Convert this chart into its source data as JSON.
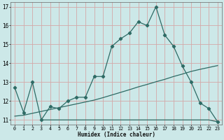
{
  "xlabel": "Humidex (Indice chaleur)",
  "xlim": [
    -0.5,
    23.5
  ],
  "ylim": [
    10.75,
    17.25
  ],
  "yticks": [
    11,
    12,
    13,
    14,
    15,
    16,
    17
  ],
  "xticks": [
    0,
    1,
    2,
    3,
    4,
    5,
    6,
    7,
    8,
    9,
    10,
    11,
    12,
    13,
    14,
    15,
    16,
    17,
    18,
    19,
    20,
    21,
    22,
    23
  ],
  "bg_color": "#cce8e8",
  "grid_color": "#d4a8a8",
  "line_color": "#2e6b65",
  "line1_x": [
    0,
    1,
    2,
    3,
    4,
    5,
    6,
    7,
    8,
    9,
    10,
    11,
    12,
    13,
    14,
    15,
    16,
    17,
    18,
    19,
    20,
    21,
    22,
    23
  ],
  "line1_y": [
    12.7,
    11.4,
    13.0,
    11.0,
    11.7,
    11.6,
    12.0,
    12.2,
    12.2,
    13.3,
    13.3,
    14.9,
    15.3,
    15.6,
    16.2,
    16.0,
    17.0,
    15.5,
    14.9,
    13.85,
    13.0,
    11.9,
    11.6,
    10.9
  ],
  "line2_x": [
    3,
    4,
    5,
    6,
    7,
    8,
    9,
    10,
    11,
    12,
    13,
    14,
    15,
    16,
    17,
    18,
    19,
    20,
    21,
    22,
    23
  ],
  "line2_y": [
    11.0,
    11.0,
    11.0,
    11.0,
    11.0,
    11.0,
    11.0,
    11.0,
    11.0,
    11.0,
    11.0,
    11.0,
    11.0,
    11.0,
    11.0,
    11.0,
    11.0,
    11.0,
    11.0,
    11.0,
    10.9
  ],
  "line3_x": [
    0,
    1,
    2,
    3,
    4,
    5,
    6,
    7,
    8,
    9,
    10,
    11,
    12,
    13,
    14,
    15,
    16,
    17,
    18,
    19,
    20,
    21,
    22,
    23
  ],
  "line3_y": [
    11.2,
    11.25,
    11.35,
    11.45,
    11.55,
    11.65,
    11.75,
    11.85,
    11.95,
    12.05,
    12.18,
    12.32,
    12.46,
    12.6,
    12.75,
    12.88,
    13.02,
    13.15,
    13.3,
    13.43,
    13.57,
    13.68,
    13.78,
    13.88
  ]
}
